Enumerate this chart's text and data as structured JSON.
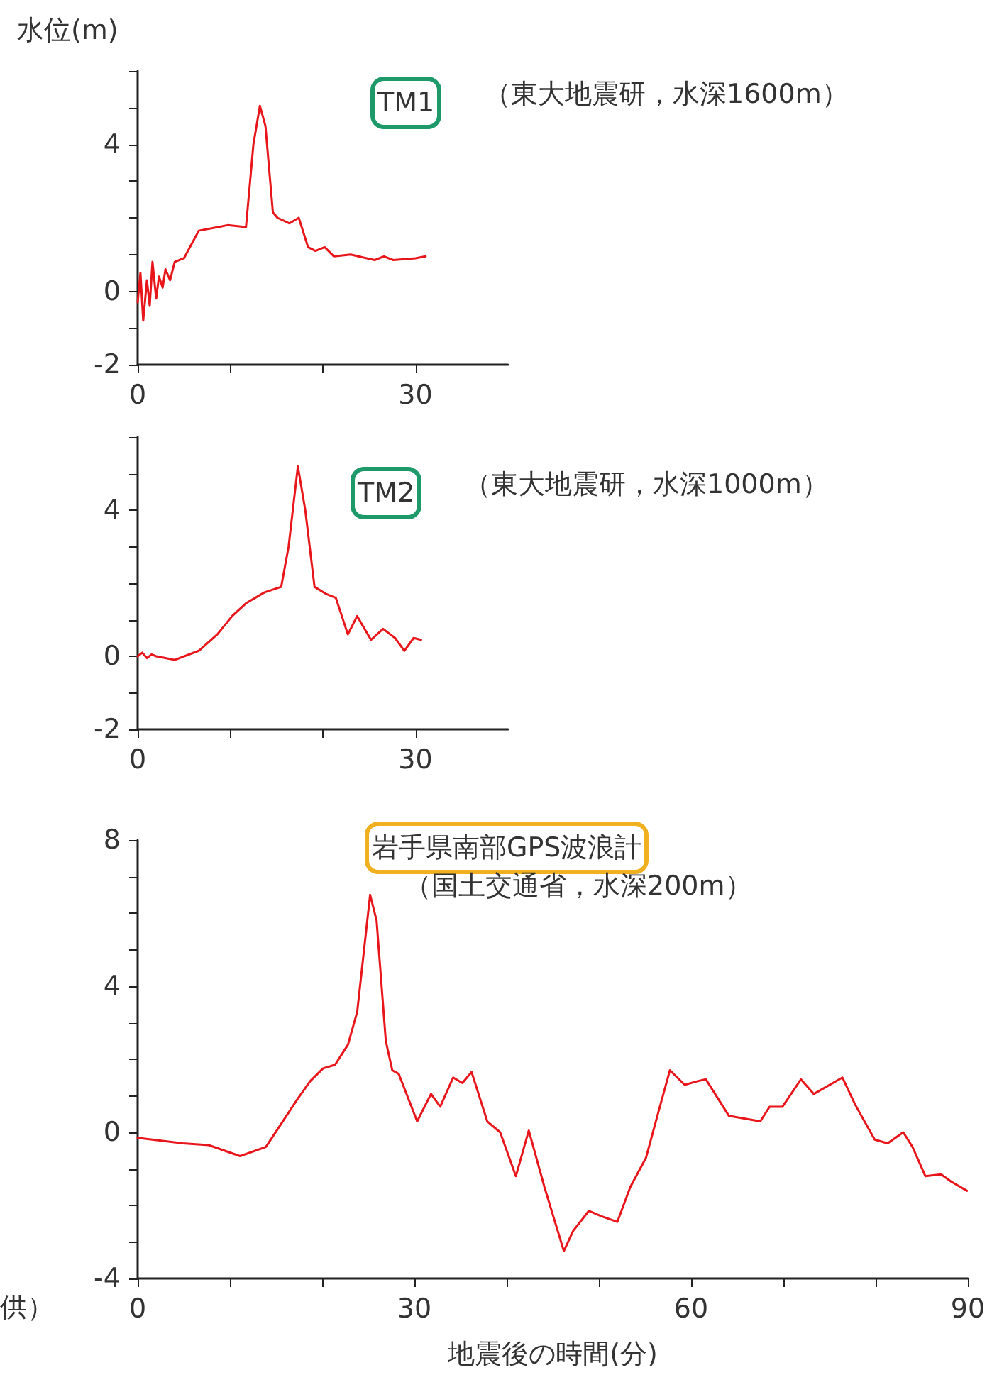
{
  "chart_data": [
    {
      "type": "line",
      "title": "TM1",
      "subtitle": "（東大地震研，水深1600m）",
      "ylabel": "水位(m)",
      "marker": "none",
      "line_style": "solid",
      "xlim": [
        0,
        40
      ],
      "xticks": [
        0,
        {
          "value": 10,
          "label": null
        },
        {
          "value": 20,
          "label": null
        },
        30
      ],
      "ylim": [
        -2,
        6
      ],
      "yticks": [
        -2,
        {
          "value": -1,
          "label": null
        },
        0,
        {
          "value": 1,
          "label": null
        },
        {
          "value": 2,
          "label": null
        },
        {
          "value": 3,
          "label": null
        },
        4,
        {
          "value": 5,
          "label": null
        },
        {
          "value": 6,
          "label": null
        }
      ],
      "series": [
        {
          "color": "#e8151b",
          "x": [
            0,
            0.3,
            0.6,
            1,
            1.3,
            1.6,
            2,
            2.3,
            2.7,
            3,
            3.5,
            4,
            5,
            6.6,
            8.7,
            9.7,
            11.7,
            12.5,
            13.2,
            13.8,
            14.6,
            15.1,
            16.4,
            17.4,
            18.4,
            19.2,
            20.2,
            21.2,
            23,
            25.6,
            26.6,
            27.6,
            30,
            31.1
          ],
          "values": [
            -0.3,
            0.5,
            -0.8,
            0.3,
            -0.4,
            0.8,
            -0.2,
            0.4,
            0.1,
            0.6,
            0.3,
            0.8,
            0.9,
            1.65,
            1.75,
            1.8,
            1.75,
            4.0,
            5.05,
            4.5,
            2.15,
            2.0,
            1.85,
            2.0,
            1.2,
            1.1,
            1.2,
            0.95,
            1.0,
            0.85,
            0.95,
            0.85,
            0.9,
            0.95
          ]
        }
      ]
    },
    {
      "type": "line",
      "title": "TM2",
      "subtitle": "（東大地震研，水深1000m）",
      "marker": "none",
      "line_style": "solid",
      "xlim": [
        0,
        40
      ],
      "xticks": [
        0,
        {
          "value": 10,
          "label": null
        },
        {
          "value": 20,
          "label": null
        },
        30
      ],
      "ylim": [
        -2,
        6
      ],
      "yticks": [
        -2,
        {
          "value": -1,
          "label": null
        },
        0,
        {
          "value": 1,
          "label": null
        },
        {
          "value": 2,
          "label": null
        },
        {
          "value": 3,
          "label": null
        },
        4,
        {
          "value": 5,
          "label": null
        },
        {
          "value": 6,
          "label": null
        }
      ],
      "series": [
        {
          "color": "#e8151b",
          "x": [
            0,
            0.5,
            1,
            1.5,
            2,
            3,
            4,
            6.6,
            8.6,
            10.2,
            11.7,
            13.7,
            15.5,
            16.3,
            17.3,
            18.1,
            19.1,
            20.4,
            21.4,
            22.7,
            23.7,
            25.2,
            26.5,
            27.8,
            28.8,
            29.8,
            30.6
          ],
          "values": [
            0,
            0.1,
            -0.05,
            0.05,
            0,
            -0.05,
            -0.1,
            0.15,
            0.6,
            1.1,
            1.45,
            1.75,
            1.9,
            3.0,
            5.2,
            4.0,
            1.9,
            1.7,
            1.6,
            0.6,
            1.1,
            0.45,
            0.75,
            0.5,
            0.15,
            0.5,
            0.45
          ]
        }
      ]
    },
    {
      "type": "line",
      "title": "岩手県南部GPS波浪計",
      "subtitle": "（国土交通省，水深200m）",
      "xlabel": "地震後の時間(分)",
      "annotations": [
        "供）"
      ],
      "marker": "none",
      "line_style": "solid",
      "xlim": [
        0,
        90
      ],
      "xticks": [
        0,
        {
          "value": 10,
          "label": null
        },
        {
          "value": 20,
          "label": null
        },
        30,
        {
          "value": 40,
          "label": null
        },
        {
          "value": 50,
          "label": null
        },
        60,
        {
          "value": 70,
          "label": null
        },
        {
          "value": 80,
          "label": null
        },
        90
      ],
      "ylim": [
        -4,
        8
      ],
      "yticks": [
        -4,
        {
          "value": -3,
          "label": null
        },
        {
          "value": -2,
          "label": null
        },
        {
          "value": -1,
          "label": null
        },
        0,
        {
          "value": 1,
          "label": null
        },
        {
          "value": 2,
          "label": null
        },
        {
          "value": 3,
          "label": null
        },
        4,
        {
          "value": 5,
          "label": null
        },
        {
          "value": 6,
          "label": null
        },
        {
          "value": 7,
          "label": null
        },
        8
      ],
      "series": [
        {
          "color": "#e8151b",
          "x": [
            0,
            4.9,
            7.7,
            11.1,
            13.9,
            17.3,
            18.7,
            20.1,
            21.4,
            22.8,
            23.8,
            25.2,
            25.9,
            26.9,
            27.6,
            28.3,
            30.3,
            31.8,
            32.8,
            34.2,
            35.2,
            36.2,
            37.9,
            39.3,
            41,
            42.4,
            44.1,
            46.2,
            47.2,
            48.9,
            50.3,
            52,
            53.4,
            55.1,
            56.5,
            57.7,
            59.3,
            60.7,
            61.6,
            64.1,
            67.5,
            68.5,
            69.9,
            71.9,
            73.3,
            76.4,
            77.8,
            79.9,
            81.3,
            83,
            84,
            85.4,
            87.1,
            88.2,
            89.9
          ],
          "values": [
            -0.15,
            -0.3,
            -0.35,
            -0.65,
            -0.4,
            0.9,
            1.4,
            1.75,
            1.85,
            2.4,
            3.3,
            6.5,
            5.8,
            2.5,
            1.7,
            1.6,
            0.3,
            1.05,
            0.7,
            1.5,
            1.35,
            1.65,
            0.3,
            0.0,
            -1.2,
            0.05,
            -1.5,
            -3.25,
            -2.7,
            -2.15,
            -2.3,
            -2.45,
            -1.5,
            -0.7,
            0.6,
            1.7,
            1.3,
            1.4,
            1.45,
            0.45,
            0.3,
            0.7,
            0.7,
            1.45,
            1.05,
            1.5,
            0.75,
            -0.2,
            -0.3,
            0.0,
            -0.4,
            -1.2,
            -1.15,
            -1.35,
            -1.6
          ]
        }
      ]
    }
  ]
}
